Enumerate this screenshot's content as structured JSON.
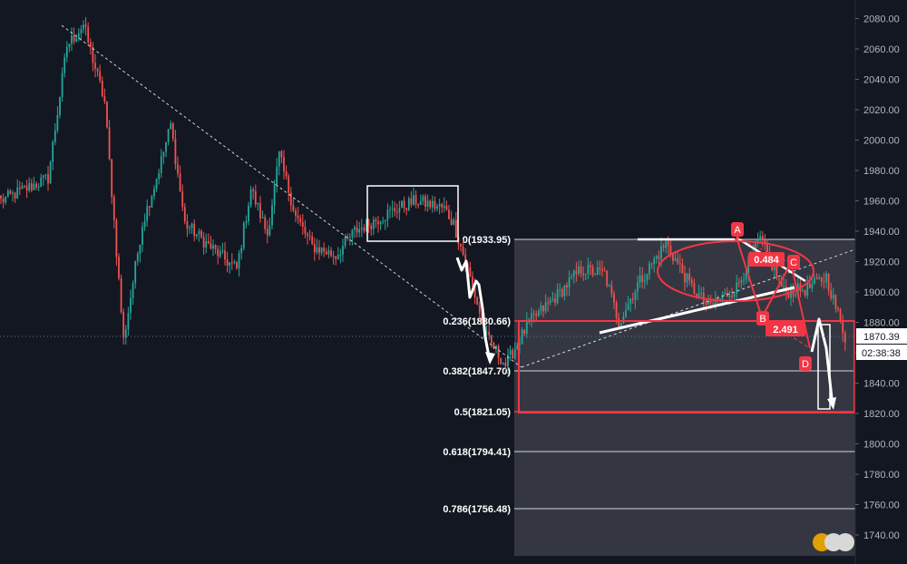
{
  "chart_data": {
    "type": "candlestick",
    "price_axis": {
      "ticks": [
        "2080.00",
        "2060.00",
        "2040.00",
        "2020.00",
        "2000.00",
        "1980.00",
        "1960.00",
        "1940.00",
        "1920.00",
        "1900.00",
        "1880.00",
        "1860.00",
        "1840.00",
        "1820.00",
        "1800.00",
        "1780.00",
        "1760.00",
        "1740.00"
      ],
      "range": [
        1731,
        2093
      ]
    },
    "current_price": {
      "value": 1870.39,
      "label": "1870.39",
      "countdown": "02:38:38"
    },
    "fib_levels": [
      {
        "ratio": "0",
        "price": 1933.95,
        "label": "0(1933.95)"
      },
      {
        "ratio": "0.236",
        "price": 1880.66,
        "label": "0.236(1880.66)"
      },
      {
        "ratio": "0.382",
        "price": 1847.7,
        "label": "0.382(1847.70)"
      },
      {
        "ratio": "0.5",
        "price": 1821.05,
        "label": "0.5(1821.05)"
      },
      {
        "ratio": "0.618",
        "price": 1794.41,
        "label": "0.618(1794.41)"
      },
      {
        "ratio": "0.786",
        "price": 1756.48,
        "label": "0.786(1756.48)"
      }
    ],
    "pattern_points": [
      {
        "name": "A",
        "price": 1933
      },
      {
        "name": "B",
        "price": 1883
      },
      {
        "name": "C",
        "price": 1918
      },
      {
        "name": "D",
        "price": 1848
      }
    ],
    "pattern_ratios": [
      "0.484",
      "2.491"
    ],
    "price_path_keypoints": [
      {
        "index": 0,
        "price": 1960
      },
      {
        "index": 20,
        "price": 1975
      },
      {
        "index": 28,
        "price": 2062
      },
      {
        "index": 35,
        "price": 2076
      },
      {
        "index": 44,
        "price": 2025
      },
      {
        "index": 52,
        "price": 1868
      },
      {
        "index": 60,
        "price": 1945
      },
      {
        "index": 66,
        "price": 1975
      },
      {
        "index": 72,
        "price": 2010
      },
      {
        "index": 78,
        "price": 1945
      },
      {
        "index": 90,
        "price": 1928
      },
      {
        "index": 100,
        "price": 1915
      },
      {
        "index": 106,
        "price": 1968
      },
      {
        "index": 113,
        "price": 1938
      },
      {
        "index": 118,
        "price": 1990
      },
      {
        "index": 125,
        "price": 1950
      },
      {
        "index": 132,
        "price": 1930
      },
      {
        "index": 142,
        "price": 1924
      },
      {
        "index": 150,
        "price": 1940
      },
      {
        "index": 168,
        "price": 1955
      },
      {
        "index": 176,
        "price": 1960
      },
      {
        "index": 188,
        "price": 1955
      },
      {
        "index": 192,
        "price": 1945
      },
      {
        "index": 197,
        "price": 1920
      },
      {
        "index": 206,
        "price": 1870
      },
      {
        "index": 214,
        "price": 1852
      },
      {
        "index": 224,
        "price": 1880
      },
      {
        "index": 236,
        "price": 1898
      },
      {
        "index": 246,
        "price": 1915
      },
      {
        "index": 256,
        "price": 1912
      },
      {
        "index": 262,
        "price": 1880
      },
      {
        "index": 270,
        "price": 1905
      },
      {
        "index": 282,
        "price": 1932
      },
      {
        "index": 292,
        "price": 1905
      },
      {
        "index": 300,
        "price": 1890
      },
      {
        "index": 312,
        "price": 1903
      },
      {
        "index": 322,
        "price": 1935
      },
      {
        "index": 332,
        "price": 1900
      },
      {
        "index": 342,
        "price": 1902
      },
      {
        "index": 350,
        "price": 1910
      },
      {
        "index": 358,
        "price": 1870
      }
    ]
  }
}
